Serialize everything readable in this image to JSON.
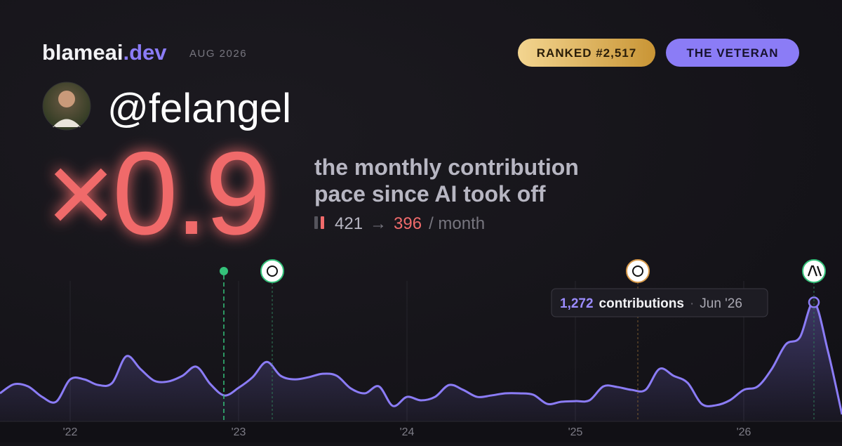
{
  "header": {
    "brand": "blameai",
    "brand_tld": ".dev",
    "date": "AUG 2026",
    "rank": "RANKED #2,517",
    "badge": "THE VETERAN"
  },
  "profile": {
    "handle": "@felangel"
  },
  "headline": {
    "multiplier": "×0.9",
    "description_line_1": "the monthly contribution",
    "description_line_2": "pace since AI took off",
    "before": "421",
    "arrow": "→",
    "after": "396",
    "unit": "/ month"
  },
  "tooltip": {
    "value": "1,272",
    "label": "contributions",
    "separator": "·",
    "date": "Jun '26"
  },
  "chart_data": {
    "type": "line",
    "color": "#8b7cf6",
    "categories": [
      null,
      null,
      null,
      null,
      null,
      "'22",
      null,
      null,
      null,
      null,
      null,
      null,
      null,
      null,
      null,
      null,
      null,
      "'23",
      null,
      null,
      null,
      null,
      null,
      null,
      null,
      null,
      null,
      null,
      null,
      "'24",
      null,
      null,
      null,
      null,
      null,
      null,
      null,
      null,
      null,
      null,
      null,
      "'25",
      null,
      null,
      null,
      null,
      null,
      null,
      null,
      null,
      null,
      null,
      null,
      "'26",
      null,
      null,
      null,
      null,
      null,
      null,
      null
    ],
    "values": [
      300,
      397,
      374,
      262,
      210,
      449,
      449,
      389,
      412,
      696,
      561,
      434,
      427,
      487,
      584,
      397,
      277,
      359,
      472,
      636,
      487,
      449,
      472,
      509,
      487,
      352,
      300,
      374,
      165,
      262,
      225,
      262,
      389,
      337,
      262,
      277,
      300,
      300,
      285,
      187,
      210,
      217,
      225,
      374,
      367,
      337,
      337,
      561,
      487,
      412,
      187,
      172,
      225,
      337,
      374,
      561,
      823,
      898,
      1272,
      749,
      75
    ],
    "ylim": [
      0,
      1500
    ]
  }
}
